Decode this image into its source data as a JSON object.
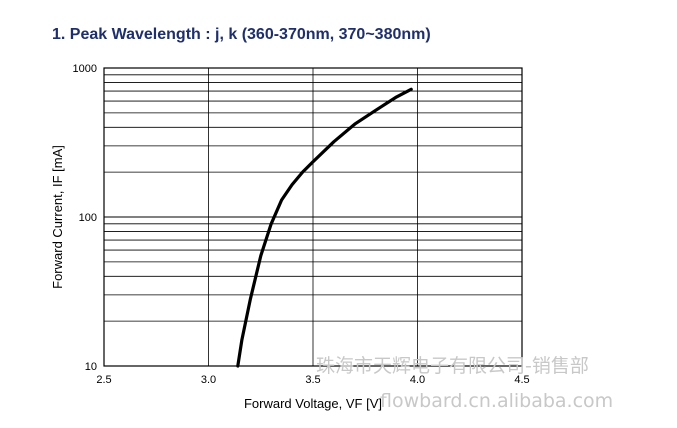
{
  "title": "1. Peak Wavelength : j, k (360-370nm, 370~380nm)",
  "watermark": {
    "line1": "珠海市天辉电子有限公司-销售部",
    "line2": "flowbard.cn.alibaba.com"
  },
  "chart_data": {
    "type": "line",
    "xlabel": "Forward Voltage, VF [V]",
    "ylabel": "Forward Current, IF [mA]",
    "xlim": [
      2.5,
      4.5
    ],
    "ylim": [
      10,
      1000
    ],
    "yscale": "log",
    "grid": true,
    "x_ticks": [
      "2.5",
      "3.0",
      "3.5",
      "4.0",
      "4.5"
    ],
    "y_ticks": [
      "10",
      "100",
      "1000"
    ],
    "series": [
      {
        "x": [
          3.14,
          3.16,
          3.2,
          3.25,
          3.3,
          3.35,
          3.4,
          3.45,
          3.5,
          3.6,
          3.7,
          3.8,
          3.9,
          3.97
        ],
        "y": [
          10,
          15,
          28,
          55,
          90,
          130,
          165,
          200,
          235,
          320,
          420,
          520,
          640,
          720
        ]
      }
    ]
  }
}
